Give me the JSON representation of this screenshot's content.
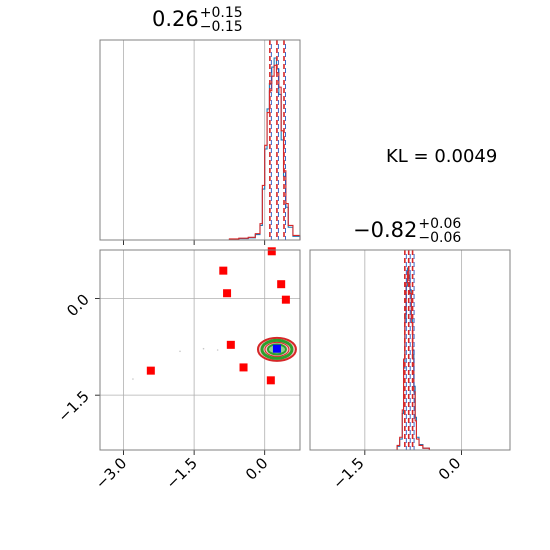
{
  "annotation": {
    "kl_text": "KL = 0.0049"
  },
  "colors": {
    "hist_ref": "#1f77b4",
    "hist_est": "#d62728",
    "quantile_red": "#d62728",
    "quantile_blue": "#1f4fbf",
    "grid": "#b0b0b0",
    "marker": "#ff0000",
    "truth_marker": "#0000ff",
    "contour_outer": "#d62728",
    "contour_inner": "#2ca02c"
  },
  "chart_data": [
    {
      "type": "line",
      "panel": "marginal-param-1",
      "title": {
        "value": "0.26",
        "upper": "+0.15",
        "lower": "−0.15"
      },
      "xlim": [
        -3.5,
        0.75
      ],
      "xticks": [
        -3.0,
        -1.5,
        0.0
      ],
      "x": [
        -0.95,
        -0.75,
        -0.55,
        -0.35,
        -0.2,
        -0.1,
        -0.05,
        0.0,
        0.05,
        0.1,
        0.15,
        0.2,
        0.25,
        0.3,
        0.35,
        0.4,
        0.45,
        0.5,
        0.6,
        0.75
      ],
      "series": [
        {
          "values": [
            0,
            0.004,
            0.008,
            0.012,
            0.03,
            0.08,
            0.28,
            0.5,
            0.72,
            0.86,
            0.95,
            1.0,
            0.94,
            0.8,
            0.55,
            0.35,
            0.18,
            0.07,
            0.02,
            0
          ]
        },
        {
          "values": [
            0,
            0.006,
            0.01,
            0.015,
            0.035,
            0.09,
            0.3,
            0.52,
            0.7,
            0.82,
            0.9,
            0.96,
            0.92,
            0.84,
            0.6,
            0.38,
            0.2,
            0.08,
            0.025,
            0
          ]
        }
      ],
      "quantiles": [
        0.11,
        0.26,
        0.41
      ]
    },
    {
      "type": "scatter",
      "panel": "joint-param-1-vs-param-2",
      "xlim": [
        -3.5,
        0.75
      ],
      "ylim": [
        -2.35,
        0.75
      ],
      "xticks": [
        -3.0,
        -1.5,
        0.0
      ],
      "yticks": [
        0.0,
        -1.5
      ],
      "xtick_labels": [
        "−3.0",
        "−1.5",
        "0.0"
      ],
      "ytick_labels": [
        "0.0",
        "−1.5"
      ],
      "points": [
        [
          -0.88,
          0.43
        ],
        [
          0.15,
          0.73
        ],
        [
          -0.8,
          0.08
        ],
        [
          0.35,
          0.22
        ],
        [
          0.45,
          -0.02
        ],
        [
          -0.72,
          -0.72
        ],
        [
          -0.45,
          -1.07
        ],
        [
          -2.42,
          -1.12
        ],
        [
          0.13,
          -1.27
        ]
      ],
      "truth": [
        0.26,
        -0.78
      ],
      "contour_center": [
        0.26,
        -0.79
      ],
      "contour_sigma": [
        0.15,
        0.06
      ]
    },
    {
      "type": "line",
      "panel": "marginal-param-2",
      "title": {
        "value": "−0.82",
        "upper": "+0.06",
        "lower": "−0.06"
      },
      "xlim": [
        -2.35,
        0.75
      ],
      "xticks": [
        -1.5,
        0.0
      ],
      "xtick_labels": [
        "−1.5",
        "0.0"
      ],
      "x": [
        -1.1,
        -1.0,
        -0.96,
        -0.92,
        -0.9,
        -0.88,
        -0.86,
        -0.84,
        -0.82,
        -0.8,
        -0.78,
        -0.76,
        -0.74,
        -0.72,
        -0.7,
        -0.66,
        -0.6,
        -0.5
      ],
      "series": [
        {
          "values": [
            0,
            0.02,
            0.06,
            0.2,
            0.45,
            0.7,
            0.9,
            1.0,
            0.96,
            0.88,
            0.72,
            0.55,
            0.35,
            0.18,
            0.07,
            0.03,
            0.01,
            0
          ]
        },
        {
          "values": [
            0,
            0.025,
            0.07,
            0.22,
            0.5,
            0.75,
            0.92,
            0.98,
            0.93,
            0.86,
            0.7,
            0.5,
            0.32,
            0.16,
            0.06,
            0.025,
            0.01,
            0
          ]
        }
      ],
      "quantiles": [
        -0.88,
        -0.82,
        -0.76
      ]
    }
  ]
}
